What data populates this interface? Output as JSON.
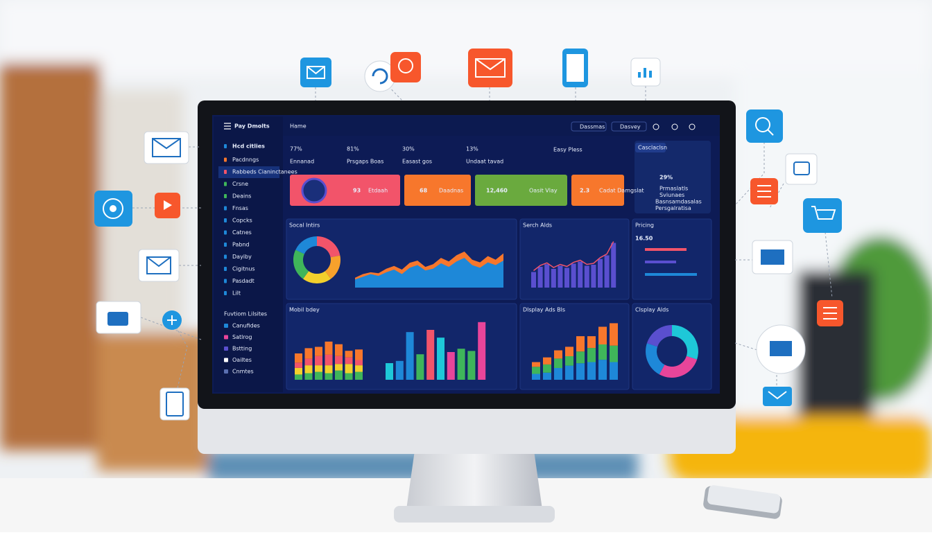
{
  "sidebar": {
    "brand": "Pay Dmolts",
    "items": [
      "Hcd citlies",
      "Pacdnngs",
      "Rabbeds Cianinctanees",
      "Crsne",
      "Deains",
      "Fnsas",
      "Copcks",
      "Catnes",
      "Pabnd",
      "Dayiby",
      "Cigitnus",
      "Pasdadt",
      "Lilt"
    ],
    "section": "Fuvtiom Lilsites",
    "items2": [
      "Canufides",
      "Satlrog",
      "Bstting",
      "Oailtes",
      "Cnmtes"
    ]
  },
  "topbar": {
    "title": "Hame",
    "controls": [
      "Dassmas",
      "Dasvey"
    ]
  },
  "kpis": [
    {
      "value": "77%",
      "label": "Ennanad"
    },
    {
      "value": "81%",
      "label": "Prsgaps Boas"
    },
    {
      "value": "30%",
      "label": "Easast gos"
    },
    {
      "value": "13%",
      "label": "Undaat tavad"
    }
  ],
  "headline": "Easy Pless",
  "cards": [
    {
      "value": "93",
      "label": "Etdaah",
      "color": "#f2546a"
    },
    {
      "value": "68",
      "label": "Daadnas",
      "color": "#f7772c"
    },
    {
      "value": "12,460",
      "label": "Oasit Vlay",
      "color": "#6aaa3e"
    },
    {
      "value": "2.3",
      "label": "Cadat Damgslat",
      "color": "#f7772c"
    }
  ],
  "summary": {
    "tab": "Casclaclsn",
    "value": "29%",
    "lines": [
      "Prmaslatls",
      "Sviunaes",
      "Basnsamdasalas",
      "Persgalratisa"
    ]
  },
  "charts": {
    "social": {
      "title": "Socal Intirs",
      "donut": [
        {
          "value": 22,
          "color": "#f2546a"
        },
        {
          "value": 18,
          "color": "#f7a12c"
        },
        {
          "value": 20,
          "color": "#f2d02c"
        },
        {
          "value": 22,
          "color": "#3fb55a"
        },
        {
          "value": 18,
          "color": "#1e88d8"
        }
      ],
      "area": [
        {
          "color": "#f7772c",
          "values": [
            22,
            30,
            34,
            32,
            42,
            48,
            40,
            55,
            60,
            46,
            52,
            66,
            58,
            72,
            80,
            62,
            56,
            70,
            62,
            76
          ]
        },
        {
          "color": "#1e88d8",
          "values": [
            18,
            24,
            30,
            26,
            34,
            40,
            30,
            44,
            50,
            38,
            42,
            54,
            46,
            58,
            66,
            50,
            44,
            56,
            50,
            60
          ]
        }
      ]
    },
    "search": {
      "title": "Serch Alds",
      "color": "#5a4fcf",
      "line_color": "#f2546a",
      "values": [
        30,
        40,
        45,
        36,
        42,
        38,
        46,
        50,
        42,
        44,
        55,
        62,
        86
      ]
    },
    "pricing": {
      "title": "Pricing",
      "value": "16.50",
      "bars": [
        {
          "value": 60,
          "color": "#f2546a"
        },
        {
          "value": 45,
          "color": "#5a4fcf"
        },
        {
          "value": 75,
          "color": "#1e88d8"
        }
      ]
    },
    "mobile": {
      "title": "Mobil bdey",
      "colors": [
        "#3fb55a",
        "#f2d02c",
        "#f2546a",
        "#f7772c"
      ],
      "groups": [
        [
          8,
          10,
          8,
          14
        ],
        [
          10,
          12,
          10,
          16
        ],
        [
          12,
          10,
          14,
          14
        ],
        [
          10,
          12,
          16,
          20
        ],
        [
          14,
          10,
          12,
          18
        ],
        [
          10,
          14,
          10,
          10
        ],
        [
          12,
          10,
          8,
          16
        ]
      ],
      "bars": [
        {
          "value": 30,
          "color": "#1ec8d8"
        },
        {
          "value": 34,
          "color": "#1e88d8"
        },
        {
          "value": 86,
          "color": "#1e88d8"
        },
        {
          "value": 46,
          "color": "#3fb55a"
        },
        {
          "value": 90,
          "color": "#f2546a"
        },
        {
          "value": 76,
          "color": "#1ec8d8"
        },
        {
          "value": 50,
          "color": "#e8459a"
        },
        {
          "value": 56,
          "color": "#3fb55a"
        },
        {
          "value": 52,
          "color": "#3fb55a"
        },
        {
          "value": 104,
          "color": "#e8459a"
        }
      ]
    },
    "display": {
      "title": "Dlsplay Ads Bls",
      "colors": [
        "#1e88d8",
        "#3fb55a",
        "#f7772c"
      ],
      "groups": [
        [
          10,
          12,
          8
        ],
        [
          12,
          14,
          12
        ],
        [
          20,
          16,
          14
        ],
        [
          24,
          16,
          16
        ],
        [
          28,
          20,
          26
        ],
        [
          30,
          24,
          20
        ],
        [
          34,
          26,
          30
        ],
        [
          30,
          28,
          38
        ]
      ]
    },
    "display2": {
      "title": "Clsplay Alds",
      "donut": [
        {
          "value": 30,
          "color": "#1ec8d8"
        },
        {
          "value": 28,
          "color": "#e8459a"
        },
        {
          "value": 22,
          "color": "#1e88d8"
        },
        {
          "value": 20,
          "color": "#5a4fcf"
        }
      ]
    }
  }
}
